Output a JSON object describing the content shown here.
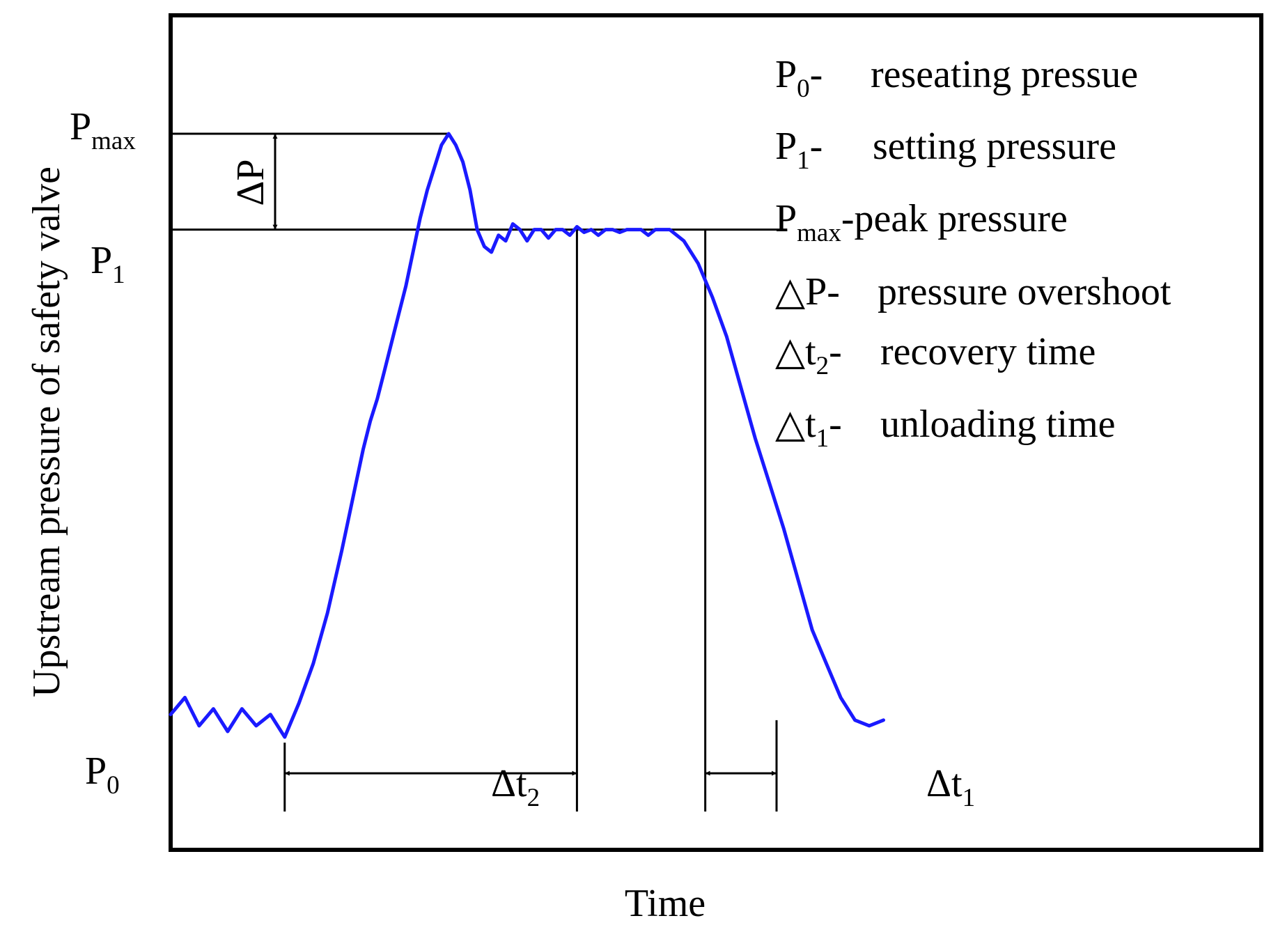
{
  "chart_data": {
    "type": "line",
    "title": "",
    "xlabel": "Time",
    "ylabel": "Upstream pressure of safety valve",
    "series": [
      {
        "name": "Upstream pressure",
        "color": "#1a1aff",
        "x": [
          0,
          2,
          4,
          6,
          8,
          10,
          12,
          14,
          16,
          18,
          20,
          22,
          24,
          25,
          26,
          27,
          28,
          29,
          30,
          31,
          32,
          33,
          34,
          35,
          36,
          37,
          38,
          39,
          40,
          41,
          42,
          43,
          44,
          45,
          46,
          47,
          48,
          49,
          50,
          51,
          52,
          53,
          54,
          55,
          56,
          57,
          58,
          59,
          60,
          61,
          62,
          63,
          64,
          65,
          66,
          67,
          68,
          69,
          70,
          72,
          74,
          76,
          78,
          80,
          82,
          84,
          86,
          88,
          90,
          92,
          94,
          96,
          98,
          100
        ],
        "y": [
          0.04,
          0.07,
          0.02,
          0.05,
          0.01,
          0.05,
          0.02,
          0.04,
          0.0,
          0.06,
          0.13,
          0.22,
          0.33,
          0.39,
          0.45,
          0.51,
          0.56,
          0.6,
          0.65,
          0.7,
          0.75,
          0.8,
          0.86,
          0.92,
          0.97,
          1.01,
          1.05,
          1.07,
          1.05,
          1.02,
          0.97,
          0.9,
          0.87,
          0.86,
          0.89,
          0.88,
          0.91,
          0.9,
          0.88,
          0.9,
          0.9,
          0.885,
          0.9,
          0.9,
          0.89,
          0.905,
          0.895,
          0.9,
          0.89,
          0.9,
          0.9,
          0.895,
          0.9,
          0.9,
          0.9,
          0.89,
          0.9,
          0.9,
          0.9,
          0.88,
          0.84,
          0.78,
          0.71,
          0.62,
          0.53,
          0.45,
          0.37,
          0.28,
          0.19,
          0.13,
          0.07,
          0.03,
          0.02,
          0.03
        ]
      }
    ],
    "levels": [
      {
        "name": "P_max",
        "value": 1.07
      },
      {
        "name": "P_1",
        "value": 0.9
      },
      {
        "name": "P_0",
        "value": 0.0
      }
    ],
    "markers": [
      {
        "name": "recovery-start",
        "x": 16
      },
      {
        "name": "recovery-end",
        "x": 57
      },
      {
        "name": "unloading-start",
        "x": 75
      },
      {
        "name": "unloading-end",
        "x": 85
      }
    ],
    "annotations": [
      {
        "id": "pmax",
        "text": "P",
        "sub": "max"
      },
      {
        "id": "p1",
        "text": "P",
        "sub": "1"
      },
      {
        "id": "p0",
        "text": "P",
        "sub": "0"
      },
      {
        "id": "dp",
        "text": "ΔP"
      },
      {
        "id": "dt2",
        "text": "Δt",
        "sub": "2"
      },
      {
        "id": "dt1",
        "text": "Δt",
        "sub": "1"
      }
    ],
    "legend": {
      "placement": "top-right",
      "entries": [
        {
          "symbol": "P",
          "sub": "0",
          "dash": "-",
          "text": "reseating pressue"
        },
        {
          "symbol": "P",
          "sub": "1",
          "dash": "-",
          "text": "setting pressure"
        },
        {
          "symbol": "P",
          "sub": "max",
          "dash": "-",
          "text": "peak pressure"
        },
        {
          "symbol": "△P",
          "sub": "",
          "dash": "-",
          "text": "pressure overshoot"
        },
        {
          "symbol": "△t",
          "sub": "2",
          "dash": "-",
          "text": "recovery time"
        },
        {
          "symbol": "△t",
          "sub": "1",
          "dash": "-",
          "text": "unloading time"
        }
      ]
    },
    "xlim": [
      0,
      153
    ],
    "ylim": [
      -0.2,
      1.28
    ],
    "grid": false
  },
  "colors": {
    "curve": "#1a1aff",
    "axis": "#000000",
    "background": "#ffffff"
  }
}
